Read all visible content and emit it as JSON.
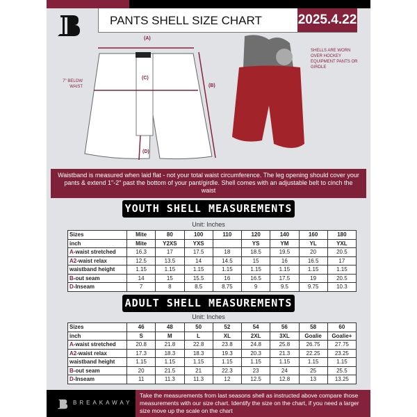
{
  "header": {
    "title": "PANTS SHELL SIZE CHART",
    "date": "2025.4.22"
  },
  "diagram": {
    "label_a": "(A)",
    "label_b": "(B)",
    "label_c": "(C)",
    "label_d": "(D)",
    "below_waist": "7\" BELOW WAIST",
    "worn_note": "SHELLS ARE WORN OVER HOCKEY EQUIPMENT PANTS OR GIRDLE",
    "shell_color": "#a3232b"
  },
  "banner": "Waistband is measured when laid flat - not your total waist circumference. The leg opening should cover your pants & extend 1\"-2\" past the bottom of your pant/girdle. Shell comes with an adjustable belt to cinch the waist",
  "youth": {
    "heading": "YOUTH SHELL MEASUREMENTS",
    "unit": "Unit: Inches",
    "rows": [
      [
        "Sizes",
        "Mite",
        "80",
        "100",
        "110",
        "120",
        "140",
        "160",
        "180"
      ],
      [
        "inch",
        "Mite",
        "Y2XS",
        "YXS",
        "",
        "YS",
        "YM",
        "YL",
        "YXL"
      ],
      [
        "A|-waist stretched",
        "16.3",
        "17",
        "17.5",
        "18",
        "18.5",
        "19.5",
        "20",
        "20.5"
      ],
      [
        "A2|-waist relax",
        "12.5",
        "13.5",
        "14",
        "14.5",
        "15",
        "16",
        "16.5",
        "17"
      ],
      [
        "waistband height",
        "1.15",
        "1.15",
        "1.15",
        "1.15",
        "1.15",
        "1.15",
        "1.15",
        "1.15"
      ],
      [
        "B|-out seam",
        "14",
        "15",
        "15.5",
        "16",
        "16.5",
        "17.5",
        "19",
        "20.5"
      ],
      [
        "D|-Inseam",
        "7",
        "8",
        "8.5",
        "8.75",
        "9",
        "9.5",
        "9.75",
        "10.3"
      ]
    ]
  },
  "adult": {
    "heading": "ADULT SHELL MEASUREMENTS",
    "unit": "Unit: Inches",
    "rows": [
      [
        "Sizes",
        "46",
        "48",
        "50",
        "52",
        "54",
        "56",
        "58",
        "60"
      ],
      [
        "inch",
        "S",
        "M",
        "L",
        "XL",
        "2XL",
        "3XL",
        "Goalie",
        "Goalie+"
      ],
      [
        "A|-waist stretched",
        "20.8",
        "21.8",
        "22.8",
        "23.8",
        "24.8",
        "25.8",
        "26.75",
        "27.75"
      ],
      [
        "A2|-waist relax",
        "17.3",
        "18.3",
        "18.3",
        "19.3",
        "20.3",
        "21.3",
        "22.25",
        "23.25"
      ],
      [
        "waistband height",
        "1.15",
        "1.15",
        "1.15",
        "1.15",
        "1.15",
        "1.15",
        "1.15",
        "1.15"
      ],
      [
        "B|-out seam",
        "20",
        "21.5",
        "21",
        "22.3",
        "23",
        "24",
        "25",
        "25.5"
      ],
      [
        "D|-Inseam",
        "11",
        "11.3",
        "11.3",
        "12",
        "12.5",
        "12.8",
        "13",
        "13.25"
      ]
    ]
  },
  "footer": {
    "brand": "BREAKAWAY",
    "text": "Take the measurements from last seasons shell as instructed above compare those measurements  with our size chart. Identify the size on the chart, if you need a larger size move up the scale on the chart"
  },
  "colors": {
    "maroon": "#84223c",
    "black": "#000000",
    "background": "#e1e2e6"
  }
}
